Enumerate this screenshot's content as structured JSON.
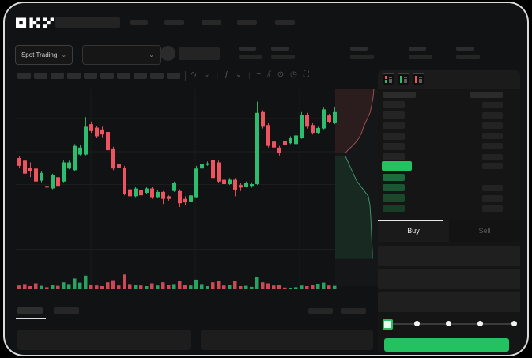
{
  "brand": {
    "name": "OKX"
  },
  "market_selector": {
    "label": "Spot Trading"
  },
  "header": {
    "nav_item_count": 5,
    "stat_group_count": 5
  },
  "toolbar": {
    "chip_count": 10,
    "icons": [
      {
        "name": "line-style-icon",
        "glyph": "∿"
      },
      {
        "name": "chevron-down-icon",
        "glyph": "⌄"
      },
      {
        "name": "divider",
        "glyph": "|"
      },
      {
        "name": "indicators-icon",
        "glyph": "ƒ"
      },
      {
        "name": "chevron-down-icon",
        "glyph": "⌄"
      },
      {
        "name": "divider",
        "glyph": "|"
      },
      {
        "name": "compare-icon",
        "glyph": "~"
      },
      {
        "name": "draw-tools-icon",
        "glyph": "⫽"
      },
      {
        "name": "snapshot-icon",
        "glyph": "⊙"
      },
      {
        "name": "history-icon",
        "glyph": "◷"
      },
      {
        "name": "fullscreen-icon",
        "glyph": "⛶"
      }
    ]
  },
  "order_book": {
    "mode_icons": [
      "split-view",
      "buys-view",
      "sells-view"
    ],
    "ask_row_count": 6,
    "bid_row_count": 4,
    "bid_row_opacities": [
      0.5,
      0.38,
      0.3,
      0.24
    ]
  },
  "trade_panel": {
    "tabs": {
      "buy": "Buy",
      "sell": "Sell",
      "active": "Buy"
    },
    "form_row_count": 3,
    "slider": {
      "stops": 5,
      "value_index": 0
    }
  },
  "bottom_panel": {
    "tab_count": 2,
    "right_link_count": 2,
    "box_count": 2
  },
  "colors": {
    "up": "#2dbd6e",
    "down": "#ee5460",
    "accent": "#23c160",
    "bg": "#111214",
    "panel": "#151515",
    "skeleton": "#282828"
  },
  "chart_data": {
    "type": "candlestick",
    "title": "",
    "xlabel": "time (unlabeled skeleton axis)",
    "ylabel": "price (normalized 0-100)",
    "ylim": [
      0,
      100
    ],
    "grid": true,
    "candles": [
      [
        60,
        61,
        54.5,
        55.5
      ],
      [
        58.5,
        59.5,
        50,
        51
      ],
      [
        54.5,
        57.5,
        49,
        52.5
      ],
      [
        54,
        55,
        44.5,
        46.5
      ],
      [
        47,
        52.5,
        46,
        51.5
      ],
      [
        44,
        45.5,
        42,
        43
      ],
      [
        42.5,
        51,
        42,
        50
      ],
      [
        49,
        50,
        43,
        44
      ],
      [
        46.5,
        58.5,
        46,
        57.5
      ],
      [
        54,
        58.5,
        53.5,
        57.5
      ],
      [
        53,
        68,
        52.5,
        67
      ],
      [
        62,
        67.5,
        61.5,
        66
      ],
      [
        62,
        83.5,
        61.5,
        78
      ],
      [
        79.5,
        81,
        74.5,
        75.5
      ],
      [
        77.5,
        78.5,
        71.5,
        72.5
      ],
      [
        76.5,
        78,
        72,
        73.5
      ],
      [
        75,
        76,
        63.5,
        64.5
      ],
      [
        65.5,
        66.5,
        53,
        54
      ],
      [
        56.5,
        58,
        53,
        54.5
      ],
      [
        54.5,
        55.5,
        38.5,
        39.5
      ],
      [
        42,
        43,
        35.5,
        38
      ],
      [
        38,
        43.5,
        37.5,
        42.5
      ],
      [
        41.8,
        42.5,
        37.5,
        38.5
      ],
      [
        40,
        43.5,
        39.5,
        42.5
      ],
      [
        42.5,
        43.5,
        36.5,
        37.5
      ],
      [
        37.5,
        41.5,
        37,
        40.5
      ],
      [
        40.5,
        41,
        33.5,
        36.5
      ],
      [
        38,
        38.5,
        35.5,
        36.5
      ],
      [
        41,
        46.5,
        40.5,
        45.5
      ],
      [
        41,
        42,
        31.8,
        34
      ],
      [
        36.5,
        38,
        33,
        34.5
      ],
      [
        35,
        39.5,
        34.5,
        38.5
      ],
      [
        37.5,
        55.5,
        37,
        54
      ],
      [
        54,
        57.5,
        53.5,
        56.5
      ],
      [
        56,
        58,
        55.5,
        57
      ],
      [
        59,
        60,
        47.5,
        48.5
      ],
      [
        57.5,
        58.5,
        45.5,
        46.5
      ],
      [
        47.5,
        48.5,
        44,
        45
      ],
      [
        45,
        48.5,
        44.5,
        47.5
      ],
      [
        47.5,
        48.5,
        38,
        41.8
      ],
      [
        44.5,
        45.5,
        41,
        43
      ],
      [
        43.5,
        46.5,
        43,
        45.5
      ],
      [
        44,
        46,
        43,
        45
      ],
      [
        45,
        92.5,
        44.5,
        86
      ],
      [
        86.5,
        87.5,
        77,
        78
      ],
      [
        79,
        80,
        66,
        67
      ],
      [
        69.5,
        70.5,
        65,
        66
      ],
      [
        66,
        67,
        61.5,
        63
      ],
      [
        70,
        71,
        66.5,
        67.5
      ],
      [
        68.5,
        72.5,
        68,
        71.5
      ],
      [
        68,
        74,
        67.5,
        73
      ],
      [
        71.5,
        86.5,
        71,
        85
      ],
      [
        85,
        86,
        77,
        78
      ],
      [
        79,
        80,
        73.5,
        74.5
      ],
      [
        74.5,
        78,
        74,
        77.3
      ],
      [
        77,
        89,
        76.5,
        88
      ],
      [
        84.5,
        85.5,
        80,
        80.5
      ],
      [
        80,
        89.5,
        79.5,
        86.5
      ]
    ],
    "volumes": [
      22,
      30,
      18,
      34,
      20,
      12,
      26,
      20,
      40,
      30,
      62,
      38,
      78,
      26,
      22,
      18,
      40,
      52,
      22,
      85,
      30,
      26,
      22,
      18,
      34,
      22,
      40,
      26,
      30,
      46,
      26,
      22,
      55,
      30,
      18,
      40,
      46,
      22,
      26,
      50,
      18,
      20,
      14,
      70,
      40,
      34,
      22,
      26,
      10,
      8,
      12,
      22,
      18,
      26,
      32,
      38,
      22,
      20
    ],
    "depth": {
      "asks": [
        [
          49,
          100
        ],
        [
          48,
          95
        ],
        [
          46,
          90
        ],
        [
          44,
          86
        ],
        [
          40,
          82
        ],
        [
          36,
          78
        ],
        [
          33,
          74
        ],
        [
          28,
          70
        ],
        [
          22,
          67
        ],
        [
          17,
          65
        ],
        [
          13,
          63
        ]
      ],
      "bids": [
        [
          13,
          61
        ],
        [
          16,
          58
        ],
        [
          19,
          55
        ],
        [
          23,
          51
        ],
        [
          27,
          47
        ],
        [
          32,
          44
        ],
        [
          37,
          41
        ],
        [
          42,
          38
        ],
        [
          44,
          33
        ],
        [
          45,
          26
        ],
        [
          46,
          16
        ],
        [
          47,
          6
        ],
        [
          47,
          2
        ]
      ]
    }
  }
}
